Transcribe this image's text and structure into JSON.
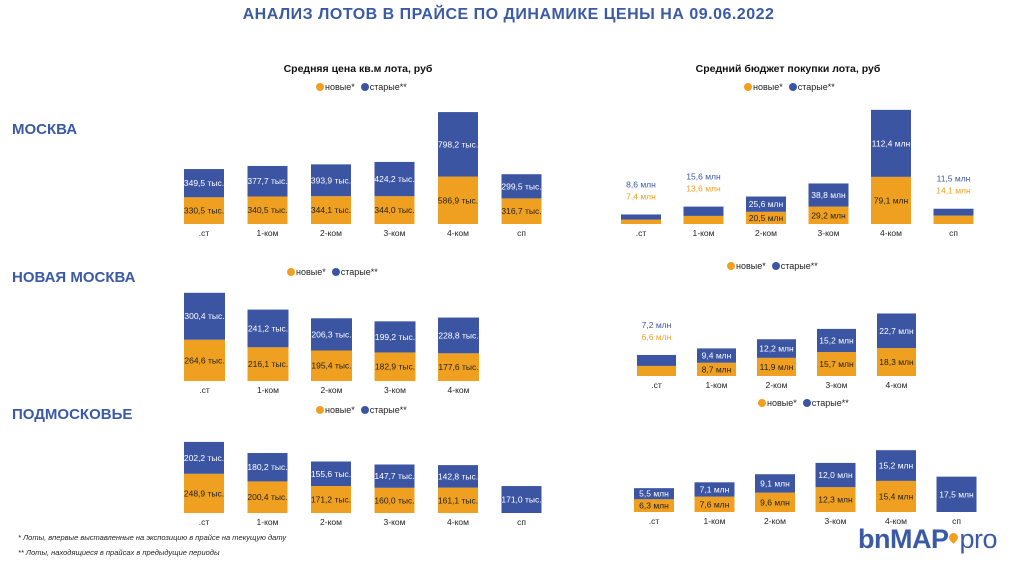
{
  "title": "АНАЛИЗ  ЛОТОВ В ПРАЙСЕ  ПО  ДИНАМИКЕ ЦЕНЫ НА  09.06.2022",
  "colors": {
    "new": "#f0a020",
    "old": "#3b55a3",
    "text_on_old": "#ffffff",
    "text_on_new": "#222222"
  },
  "legend": {
    "new": "новые*",
    "old": "старые**"
  },
  "sections": [
    {
      "label": "МОСКВА"
    },
    {
      "label": "НОВАЯ МОСКВА"
    },
    {
      "label": "ПОДМОСКОВЬЕ"
    }
  ],
  "chart_titles": {
    "price": "Средняя цена кв.м лота, руб",
    "budget": "Средний бюджет покупки лота, руб"
  },
  "footnotes": [
    "* Лоты, впервые выставленные на экспозицию в  прайсе на текущую дату",
    "** Лоты, находящиеся в прайсах в предыдущие периоды"
  ],
  "brand": {
    "bold": "bnMAP",
    "dot": ".",
    "light": "pro"
  },
  "chart_data": [
    {
      "type": "bar",
      "stacked": true,
      "region": "МОСКВА",
      "metric": "Средняя цена кв.м лота, руб",
      "categories": [
        ".ст",
        "1-ком",
        "2-ком",
        "3-ком",
        "4-ком",
        "сп"
      ],
      "series": [
        {
          "name": "новые*",
          "values": [
            330.5,
            340.5,
            344.1,
            344.0,
            586.9,
            316.7
          ],
          "labels": [
            "330,5 тыс.",
            "340,5 тыс.",
            "344,1 тыс.",
            "344,0 тыс.",
            "586,9 тыс.",
            "316,7 тыс."
          ]
        },
        {
          "name": "старые**",
          "values": [
            349.5,
            377.7,
            393.9,
            424.2,
            798.2,
            299.5
          ],
          "labels": [
            "349,5 тыс.",
            "377,7 тыс.",
            "393,9 тыс.",
            "424,2 тыс.",
            "798,2 тыс.",
            "299,5 тыс."
          ]
        }
      ]
    },
    {
      "type": "bar",
      "stacked": true,
      "region": "МОСКВА",
      "metric": "Средний бюджет покупки лота, руб",
      "categories": [
        ".ст",
        "1-ком",
        "2-ком",
        "3-ком",
        "4-ком",
        "сп"
      ],
      "series": [
        {
          "name": "новые*",
          "values": [
            7.4,
            13.6,
            20.5,
            29.2,
            79.1,
            14.1
          ],
          "labels": [
            "7,4 млн",
            "13,6 млн",
            "20,5 млн",
            "29,2 млн",
            "79,1 млн",
            "14,1 млн"
          ]
        },
        {
          "name": "старые**",
          "values": [
            8.6,
            15.6,
            25.6,
            38.8,
            112.4,
            11.5
          ],
          "labels": [
            "8,6 млн",
            "15,6 млн",
            "25,6 млн",
            "38,8 млн",
            "112,4 млн",
            "11,5 млн"
          ]
        }
      ]
    },
    {
      "type": "bar",
      "stacked": true,
      "region": "НОВАЯ МОСКВА",
      "metric": "Средняя цена кв.м лота, руб",
      "categories": [
        ".ст",
        "1-ком",
        "2-ком",
        "3-ком",
        "4-ком"
      ],
      "series": [
        {
          "name": "новые*",
          "values": [
            264.6,
            216.1,
            195.4,
            182.9,
            177.6
          ],
          "labels": [
            "264,6 тыс.",
            "216,1 тыс.",
            "195,4 тыс.",
            "182,9 тыс.",
            "177,6 тыс."
          ]
        },
        {
          "name": "старые**",
          "values": [
            300.4,
            241.2,
            206.3,
            199.2,
            228.8
          ],
          "labels": [
            "300,4 тыс.",
            "241,2 тыс.",
            "206,3 тыс.",
            "199,2 тыс.",
            "228,8 тыс."
          ]
        }
      ]
    },
    {
      "type": "bar",
      "stacked": true,
      "region": "НОВАЯ МОСКВА",
      "metric": "Средний бюджет покупки лота, руб",
      "categories": [
        ".ст",
        "1-ком",
        "2-ком",
        "3-ком",
        "4-ком"
      ],
      "series": [
        {
          "name": "новые*",
          "values": [
            6.6,
            8.7,
            11.9,
            15.7,
            18.3
          ],
          "labels": [
            "6,6 млн",
            "8,7 млн",
            "11,9 млн",
            "15,7 млн",
            "18,3 млн"
          ]
        },
        {
          "name": "старые**",
          "values": [
            7.2,
            9.4,
            12.2,
            15.2,
            22.7
          ],
          "labels": [
            "7,2 млн",
            "9,4 млн",
            "12,2 млн",
            "15,2 млн",
            "22,7 млн"
          ]
        }
      ]
    },
    {
      "type": "bar",
      "stacked": true,
      "region": "ПОДМОСКОВЬЕ",
      "metric": "Средняя цена кв.м лота, руб",
      "categories": [
        ".ст",
        "1-ком",
        "2-ком",
        "3-ком",
        "4-ком",
        "сп"
      ],
      "series": [
        {
          "name": "новые*",
          "values": [
            248.9,
            200.4,
            171.2,
            160.0,
            161.1,
            null
          ],
          "labels": [
            "248,9 тыс.",
            "200,4 тыс.",
            "171,2 тыс.",
            "160,0 тыс.",
            "161,1 тыс.",
            ""
          ]
        },
        {
          "name": "старые**",
          "values": [
            202.2,
            180.2,
            155.6,
            147.7,
            142.8,
            171.0
          ],
          "labels": [
            "202,2 тыс.",
            "180,2 тыс.",
            "155,6 тыс.",
            "147,7 тыс.",
            "142,8 тыс.",
            "171,0 тыс."
          ]
        }
      ]
    },
    {
      "type": "bar",
      "stacked": true,
      "region": "ПОДМОСКОВЬЕ",
      "metric": "Средний бюджет покупки лота, руб",
      "categories": [
        ".ст",
        "1-ком",
        "2-ком",
        "3-ком",
        "4-ком",
        "сп"
      ],
      "series": [
        {
          "name": "новые*",
          "values": [
            6.3,
            7.6,
            9.6,
            12.3,
            15.4,
            null
          ],
          "labels": [
            "6,3 млн",
            "7,6 млн",
            "9,6 млн",
            "12,3 млн",
            "15,4 млн",
            ""
          ]
        },
        {
          "name": "старые**",
          "values": [
            5.5,
            7.1,
            9.1,
            12.0,
            15.2,
            17.5
          ],
          "labels": [
            "5,5 млн",
            "7,1 млн",
            "9,1 млн",
            "12,0 млн",
            "15,2 млн",
            "17,5 млн"
          ]
        }
      ]
    }
  ]
}
